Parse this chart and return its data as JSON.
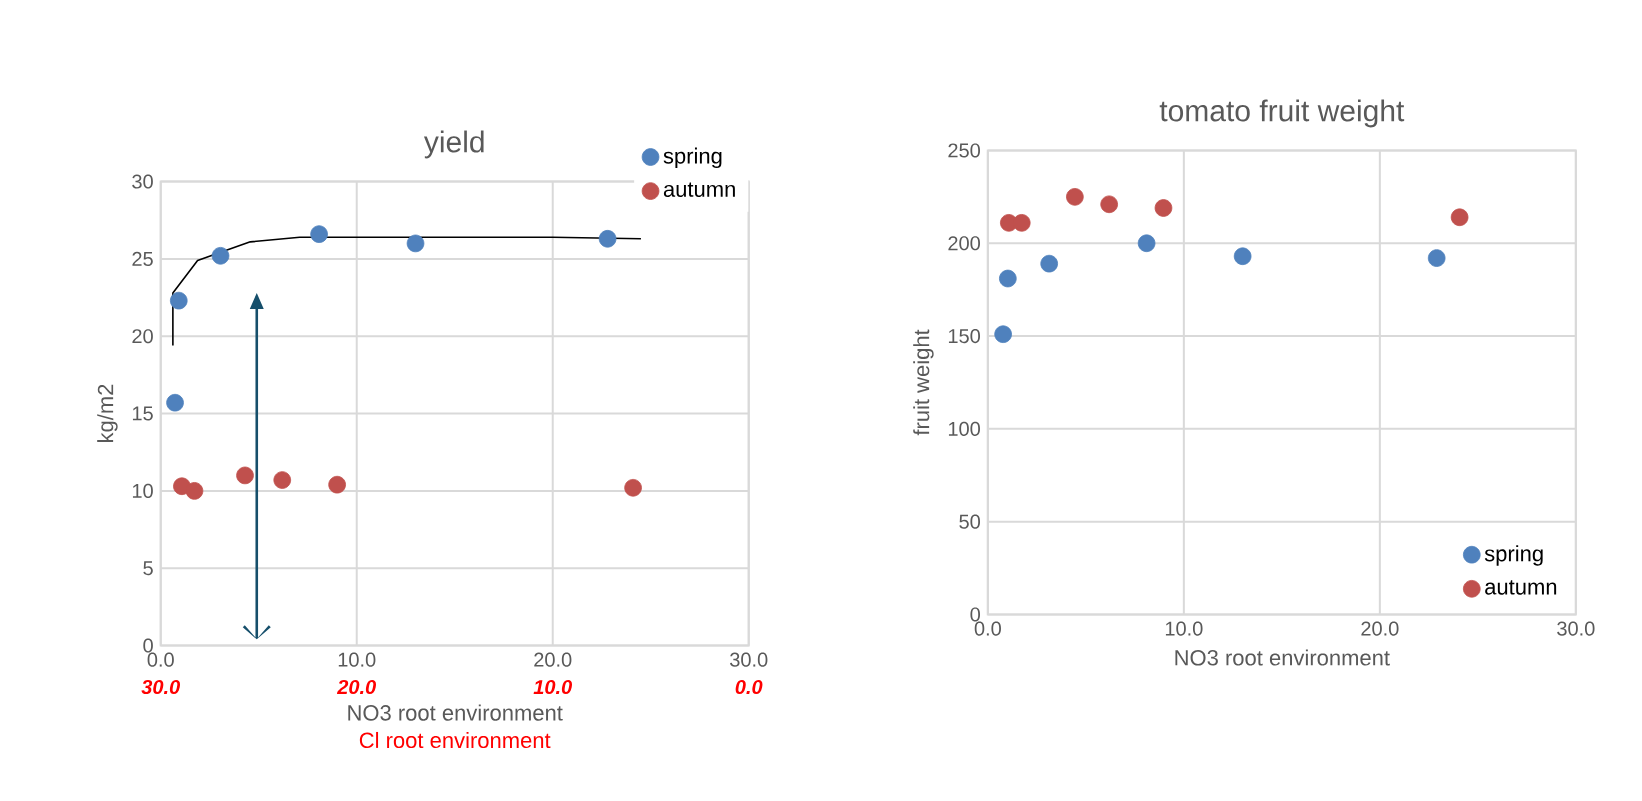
{
  "chart_data": [
    {
      "type": "scatter",
      "title": "yield",
      "xlabel": "NO3  root environment",
      "ylabel": "kg/m2",
      "x2label": "Cl   root environment",
      "series": [
        {
          "name": "spring",
          "color": "#4f81bd",
          "x": [
            0.73,
            0.92,
            3.05,
            8.08,
            13.0,
            22.8
          ],
          "values": [
            15.7,
            22.3,
            25.2,
            26.6,
            26.0,
            26.3
          ]
        },
        {
          "name": "autumn",
          "color": "#c0504d",
          "x": [
            1.08,
            1.72,
            4.3,
            6.2,
            9.0,
            24.1
          ],
          "values": [
            10.3,
            10.0,
            11.0,
            10.7,
            10.4,
            10.2
          ]
        },
        {
          "type": "line",
          "color": "#000000",
          "marker": "none",
          "x": [
            0.62,
            0.62,
            1.88,
            4.57,
            7.09,
            20.0,
            24.5
          ],
          "values": [
            19.4,
            22.8,
            24.9,
            26.1,
            26.4,
            26.4,
            26.3
          ]
        }
      ],
      "xlim": [
        0,
        30
      ],
      "xticks": [
        {
          "value": 0,
          "label": "0.0"
        },
        {
          "value": 10,
          "label": "10.0"
        },
        {
          "value": 20,
          "label": "20.0"
        },
        {
          "value": 30,
          "label": "30.0"
        }
      ],
      "x2lim": [
        30,
        0
      ],
      "x2ticks": [
        {
          "value": 30,
          "label": "30.0"
        },
        {
          "value": 20,
          "label": "20.0"
        },
        {
          "value": 10,
          "label": "10.0"
        },
        {
          "value": 0,
          "label": "0.0"
        }
      ],
      "ylim": [
        0,
        30
      ],
      "yticks": [
        0,
        5,
        10,
        15,
        20,
        25,
        30
      ],
      "grid": true,
      "legend": "top right",
      "marker": "circle"
    },
    {
      "type": "scatter",
      "title": "tomato fruit weight",
      "xlabel": "NO3  root environment",
      "ylabel": "fruit weight",
      "series": [
        {
          "name": "spring",
          "color": "#4f81bd",
          "x": [
            0.78,
            1.02,
            3.13,
            8.1,
            13.0,
            22.9
          ],
          "values": [
            151,
            181,
            189,
            200,
            193,
            192
          ]
        },
        {
          "name": "autumn",
          "color": "#c0504d",
          "x": [
            1.07,
            1.73,
            4.44,
            6.19,
            8.96,
            24.07
          ],
          "values": [
            211,
            211,
            225,
            221,
            219,
            214
          ]
        }
      ],
      "xlim": [
        0,
        30
      ],
      "xticks": [
        {
          "value": 0,
          "label": "0.0"
        },
        {
          "value": 10,
          "label": "10.0"
        },
        {
          "value": 20,
          "label": "20.0"
        },
        {
          "value": 30,
          "label": "30.0"
        }
      ],
      "ylim": [
        0,
        250
      ],
      "yticks": [
        0,
        50,
        100,
        150,
        200,
        250
      ],
      "grid": true,
      "legend": "bottom right",
      "marker": "circle"
    }
  ]
}
